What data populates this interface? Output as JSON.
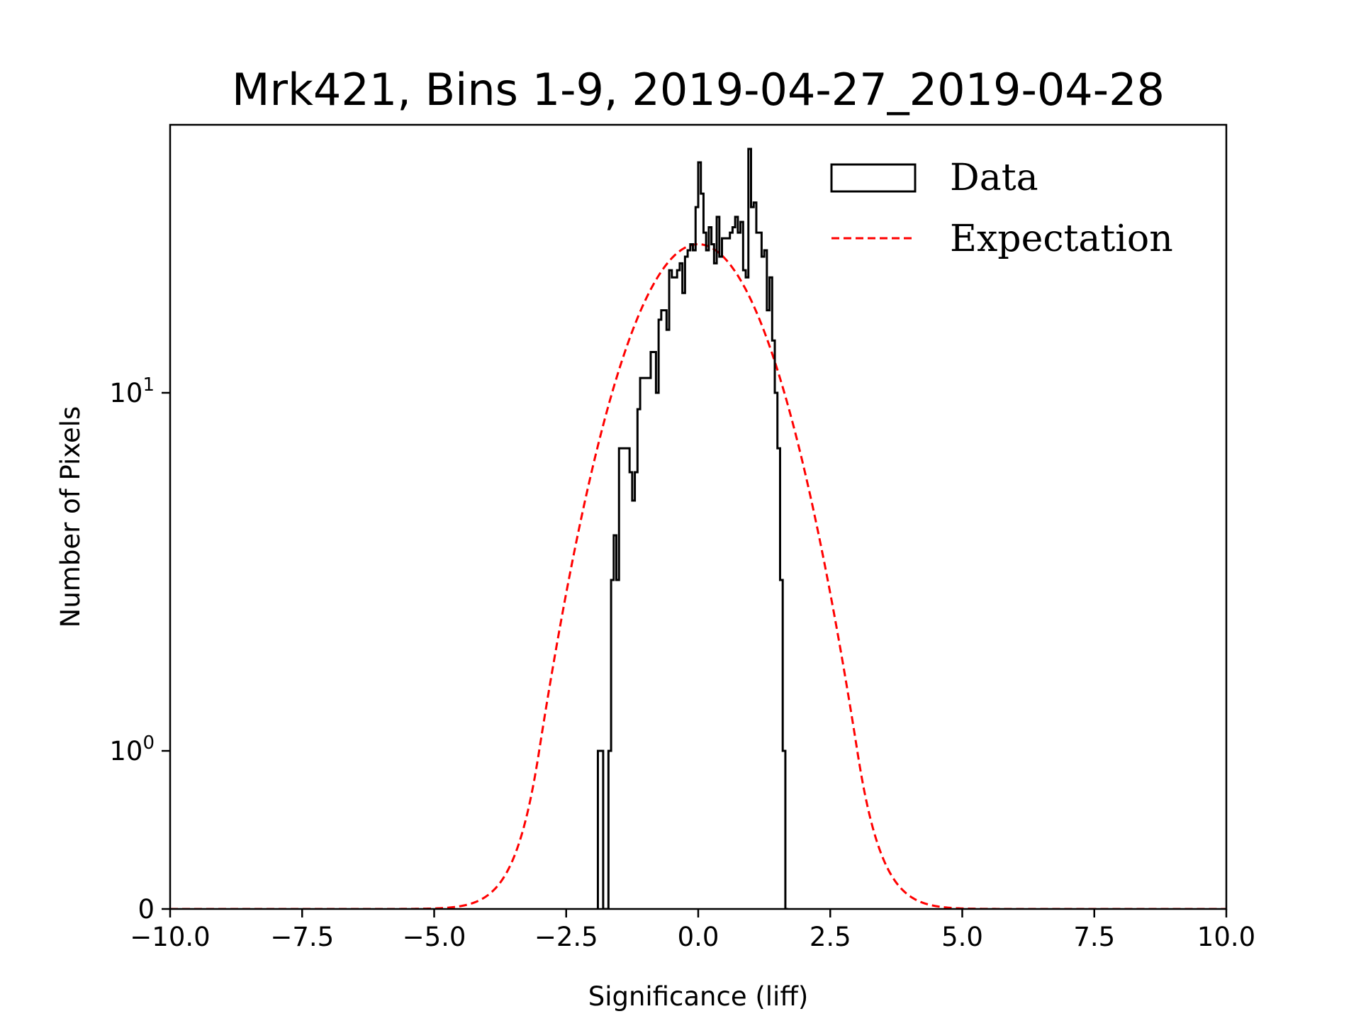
{
  "chart_data": {
    "type": "histogram",
    "title": "Mrk421, Bins 1-9, 2019-04-27_2019-04-28",
    "xlabel": "Significance (liff)",
    "ylabel": "Number of Pixels",
    "xlim": [
      -10,
      10
    ],
    "yscale": "symlog",
    "ylim": [
      0,
      60
    ],
    "linthresh": 1,
    "grid": false,
    "xticks": [
      {
        "value": -10,
        "label": "−10.0"
      },
      {
        "value": -7.5,
        "label": "−7.5"
      },
      {
        "value": -5,
        "label": "−5.0"
      },
      {
        "value": -2.5,
        "label": "−2.5"
      },
      {
        "value": 0,
        "label": "0.0"
      },
      {
        "value": 2.5,
        "label": "2.5"
      },
      {
        "value": 5,
        "label": "5.0"
      },
      {
        "value": 7.5,
        "label": "7.5"
      },
      {
        "value": 10,
        "label": "10.0"
      }
    ],
    "yticks": [
      {
        "value": 0,
        "label": "0",
        "sup": ""
      },
      {
        "value": 1,
        "label": "10",
        "sup": "0"
      },
      {
        "value": 10,
        "label": "10",
        "sup": "1"
      }
    ],
    "legend": {
      "placement": "upper-right",
      "entries": [
        {
          "label": "Data",
          "style": "step-outline",
          "color": "#000000"
        },
        {
          "label": "Expectation",
          "style": "dashed",
          "color": "#ff0000"
        }
      ]
    },
    "series": [
      {
        "name": "Data",
        "kind": "step-histogram",
        "color": "#000000",
        "bin_start": -1.9,
        "bin_width": 0.05,
        "counts": [
          1,
          1,
          0,
          0,
          1,
          3,
          4,
          3,
          7,
          7,
          7,
          7,
          6,
          5,
          6,
          9,
          11,
          11,
          11,
          11,
          13,
          13,
          10,
          16,
          17,
          17,
          15,
          22,
          21,
          21,
          22,
          23,
          19,
          24,
          25,
          26,
          25,
          33,
          44,
          36,
          28,
          25,
          29,
          26,
          23,
          31,
          24,
          27,
          27,
          27,
          28,
          29,
          31,
          28,
          30,
          22,
          21,
          48,
          33,
          34,
          28,
          28,
          24,
          25,
          17,
          21,
          14,
          10,
          7,
          3,
          1,
          0
        ],
        "counts_note": "approximate, read from symlog axis"
      },
      {
        "name": "Expectation",
        "kind": "line",
        "color": "#ff0000",
        "linestyle": "dashed",
        "peak": 26,
        "center": 0,
        "sigma": 1.18,
        "x": [
          -10,
          -6,
          -5,
          -4.5,
          -4,
          -3.75,
          -3.5,
          -3.25,
          -3,
          -2.75,
          -2.5,
          -2.25,
          -2,
          -1.75,
          -1.5,
          -1.25,
          -1,
          -0.75,
          -0.5,
          -0.25,
          0,
          0.25,
          0.5,
          0.75,
          1,
          1.25,
          1.5,
          1.75,
          2,
          2.25,
          2.5,
          2.75,
          3,
          3.25,
          3.5,
          3.75,
          4,
          4.5,
          5,
          6,
          10
        ],
        "y": [
          0,
          0.0,
          0.008,
          0.037,
          0.082,
          0.168,
          0.32,
          0.57,
          0.96,
          1.6,
          2.7,
          4.1,
          6.0,
          8.5,
          11.5,
          14.9,
          18.3,
          21.5,
          23.9,
          25.4,
          26.0,
          25.4,
          23.9,
          21.5,
          18.3,
          14.9,
          11.5,
          8.5,
          6.0,
          4.1,
          2.7,
          1.6,
          0.96,
          0.57,
          0.32,
          0.168,
          0.082,
          0.037,
          0.008,
          0.0,
          0
        ]
      }
    ]
  }
}
